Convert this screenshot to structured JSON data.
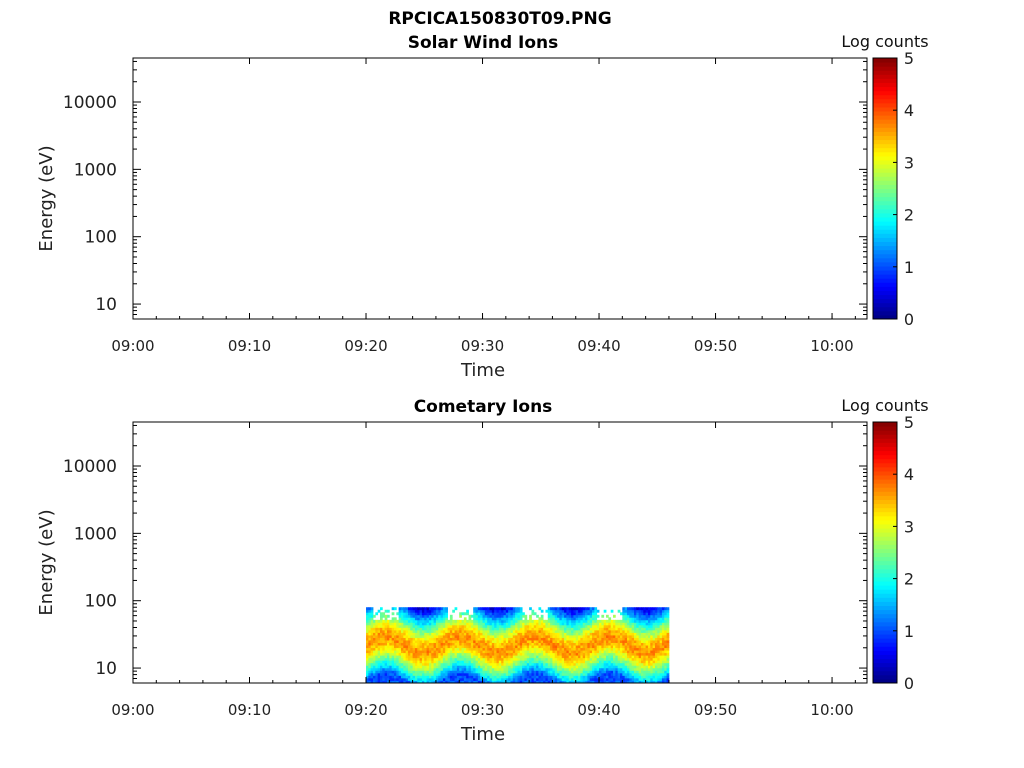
{
  "figure": {
    "title": "RPCICA150830T09.PNG"
  },
  "chart_data": [
    {
      "type": "heatmap",
      "title": "Solar Wind Ions",
      "xlabel": "Time",
      "ylabel": "Energy (eV)",
      "x_ticks": [
        "09:00",
        "09:10",
        "09:20",
        "09:30",
        "09:40",
        "09:50",
        "10:00"
      ],
      "y_scale": "log",
      "y_ticks": [
        10,
        100,
        1000,
        10000
      ],
      "y_tick_labels": [
        "10",
        "100",
        "1000",
        "10000"
      ],
      "ylim": [
        6,
        45000
      ],
      "xlim": [
        "09:00",
        "10:03"
      ],
      "colorbar": {
        "label": "Log counts",
        "range": [
          0,
          5
        ],
        "ticks": [
          "0",
          "1",
          "2",
          "3",
          "4",
          "5"
        ],
        "colormap": "jet"
      },
      "data": []
    },
    {
      "type": "heatmap",
      "title": "Cometary Ions",
      "xlabel": "Time",
      "ylabel": "Energy (eV)",
      "x_ticks": [
        "09:00",
        "09:10",
        "09:20",
        "09:30",
        "09:40",
        "09:50",
        "10:00"
      ],
      "y_scale": "log",
      "y_ticks": [
        10,
        100,
        1000,
        10000
      ],
      "y_tick_labels": [
        "10",
        "100",
        "1000",
        "10000"
      ],
      "ylim": [
        6,
        45000
      ],
      "xlim": [
        "09:00",
        "10:03"
      ],
      "colorbar": {
        "label": "Log counts",
        "range": [
          0,
          5
        ],
        "ticks": [
          "0",
          "1",
          "2",
          "3",
          "4",
          "5"
        ],
        "colormap": "jet"
      },
      "data_time_range": [
        "09:20",
        "09:46"
      ],
      "data_energy_range_eV": [
        6,
        80
      ],
      "description_profile": [
        {
          "energy_eV": 75,
          "log_counts": 1.2
        },
        {
          "energy_eV": 55,
          "log_counts": 2.0
        },
        {
          "energy_eV": 40,
          "log_counts": 2.8
        },
        {
          "energy_eV": 30,
          "log_counts": 3.4
        },
        {
          "energy_eV": 22,
          "log_counts": 3.7
        },
        {
          "energy_eV": 17,
          "log_counts": 3.4
        },
        {
          "energy_eV": 13,
          "log_counts": 2.8
        },
        {
          "energy_eV": 10,
          "log_counts": 2.2
        },
        {
          "energy_eV": 8,
          "log_counts": 1.6
        },
        {
          "energy_eV": 6.5,
          "log_counts": 1.0
        }
      ]
    }
  ]
}
